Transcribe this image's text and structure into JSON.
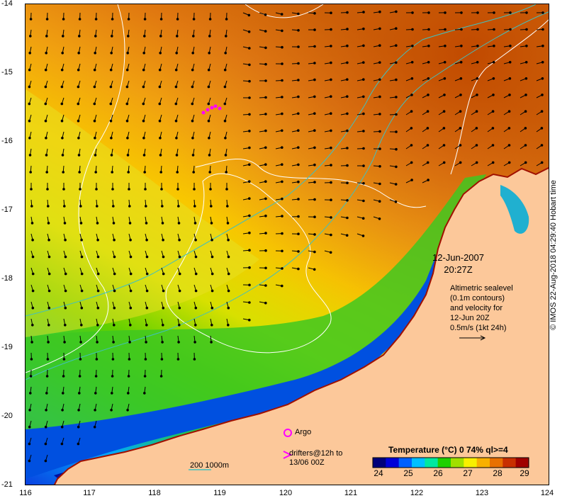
{
  "axes": {
    "y_ticks": [
      "-14",
      "-15",
      "-16",
      "-17",
      "-18",
      "-19",
      "-20",
      "-21"
    ],
    "x_ticks": [
      "116",
      "117",
      "118",
      "119",
      "120",
      "121",
      "122",
      "123",
      "124"
    ]
  },
  "timestamp": {
    "date": "12-Jun-2007",
    "time": "20:27Z"
  },
  "legend": {
    "line1": "Altimetric sealevel",
    "line2": "(0.1m contours)",
    "line3": "and velocity for",
    "line4": "12-Jun 20Z",
    "line5": "0.5m/s (1kt 24h)"
  },
  "colorbar": {
    "title_bold": "Temperature",
    "title_rest": "(°C) 0 74% ql>=4",
    "ticks": [
      "24",
      "25",
      "26",
      "27",
      "28",
      "29"
    ],
    "colors": [
      "#00007a",
      "#0000d8",
      "#0060ff",
      "#00c0ff",
      "#00e8a0",
      "#20d000",
      "#a0e000",
      "#f8f000",
      "#f8b000",
      "#e87000",
      "#c83000",
      "#a00000"
    ]
  },
  "markers": {
    "argo_label": "Argo",
    "drifters_line1": "drifters@12h to",
    "drifters_line2": "13/06 00Z",
    "depth_label": "200  1000m"
  },
  "copyright": "© IMOS 22-Aug-2018 04:29:40 Hobart time",
  "colors": {
    "land": "#fcc89a",
    "coast_warm": "#b85000",
    "contour": "#ffffff",
    "isobath": "#40c0c0",
    "argo": "#ff00ff"
  }
}
